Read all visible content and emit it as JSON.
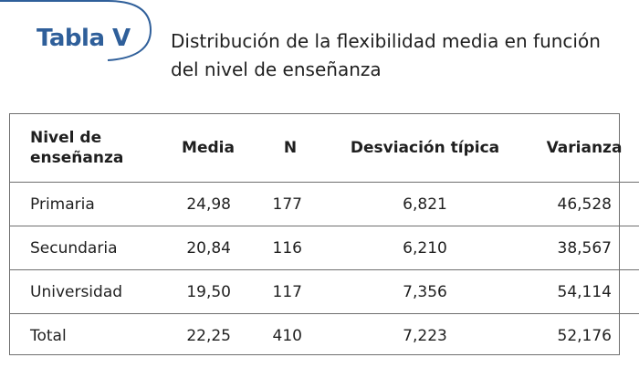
{
  "header": {
    "tag": "Tabla V",
    "title": "Distribución de la flexibilidad media en función del nivel de enseñanza"
  },
  "table": {
    "columns": [
      "Nivel de enseñanza",
      "Media",
      "N",
      "Desviación típica",
      "Varianza"
    ],
    "rows": [
      [
        "Primaria",
        "24,98",
        "177",
        "6,821",
        "46,528"
      ],
      [
        "Secundaria",
        "20,84",
        "116",
        "6,210",
        "38,567"
      ],
      [
        "Universidad",
        "19,50",
        "117",
        "7,356",
        "54,114"
      ],
      [
        "Total",
        "22,25",
        "410",
        "7,223",
        "52,176"
      ]
    ]
  },
  "colors": {
    "accent": "#2f5f9a",
    "rule": "#6f6f6f",
    "text": "#1f1f1f"
  }
}
